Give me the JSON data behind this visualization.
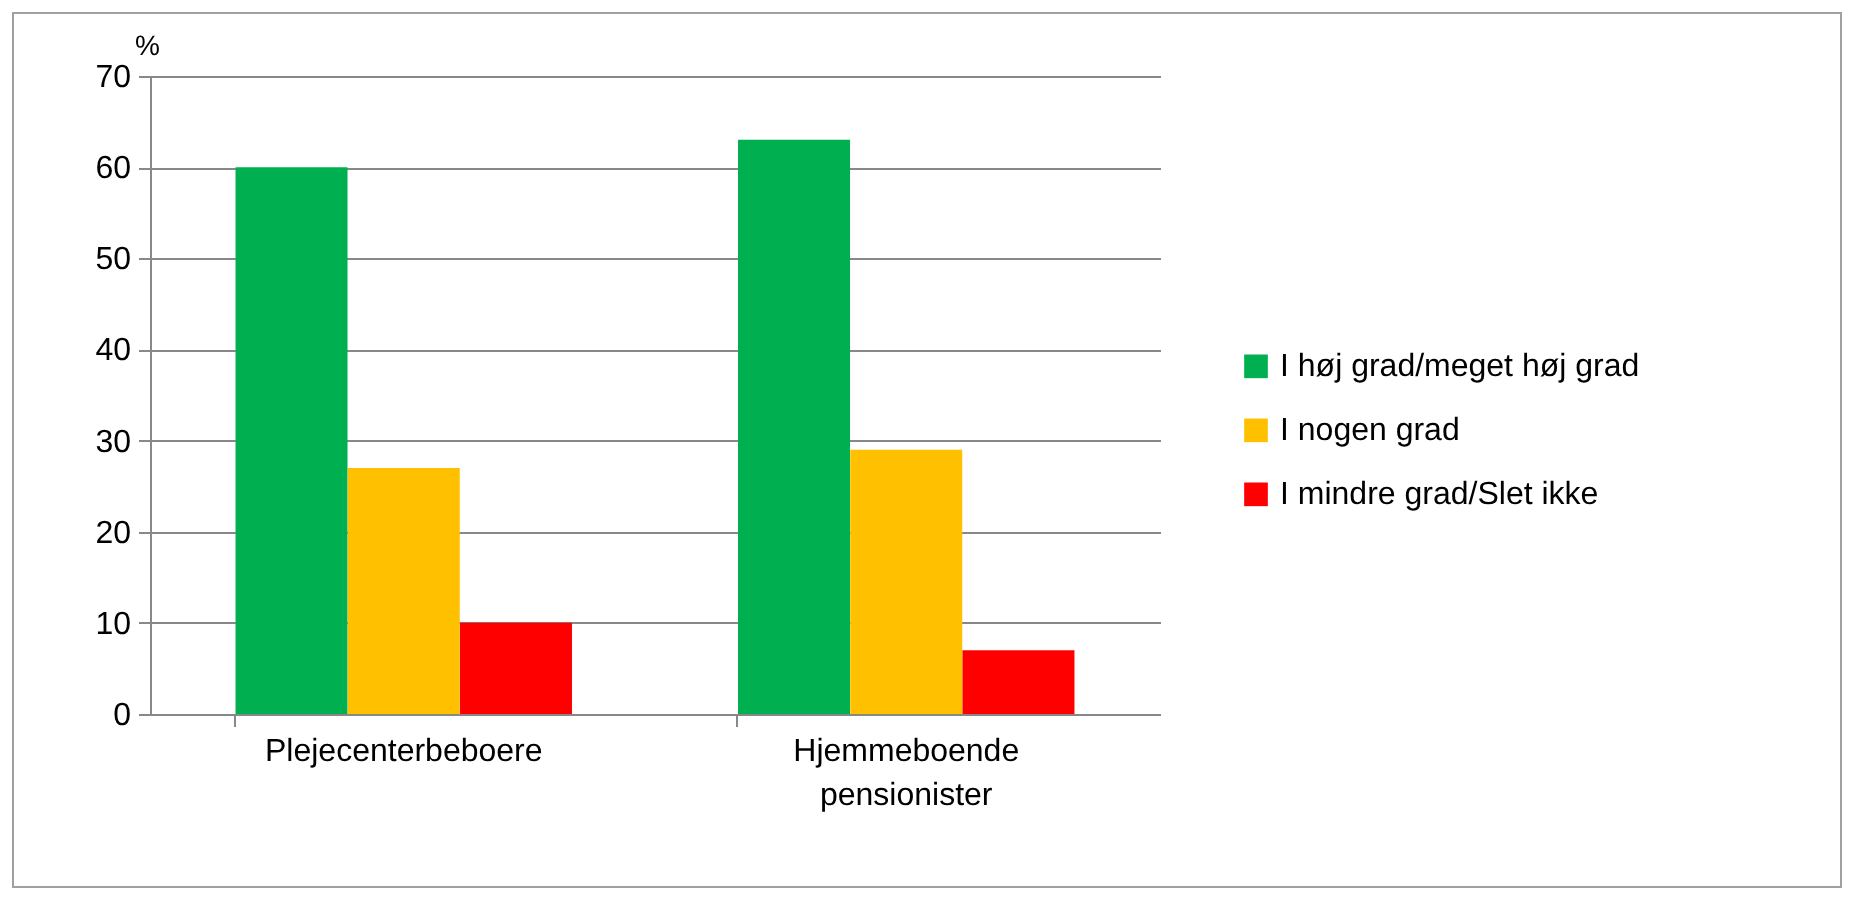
{
  "chart_data": {
    "type": "bar",
    "ylabel": "%",
    "categories": [
      "Plejecenterbeboere",
      "Hjemmeboende pensionister"
    ],
    "series": [
      {
        "name": "I høj grad/meget høj grad",
        "color": "#00b050",
        "values": [
          60,
          63
        ]
      },
      {
        "name": "I nogen grad",
        "color": "#ffc000",
        "values": [
          27,
          29
        ]
      },
      {
        "name": "I mindre grad/Slet ikke",
        "color": "#ff0000",
        "values": [
          10,
          7
        ]
      }
    ],
    "ylim": [
      0,
      70
    ],
    "yticks": [
      0,
      10,
      20,
      30,
      40,
      50,
      60,
      70
    ],
    "grid": "y",
    "legend": "right"
  }
}
